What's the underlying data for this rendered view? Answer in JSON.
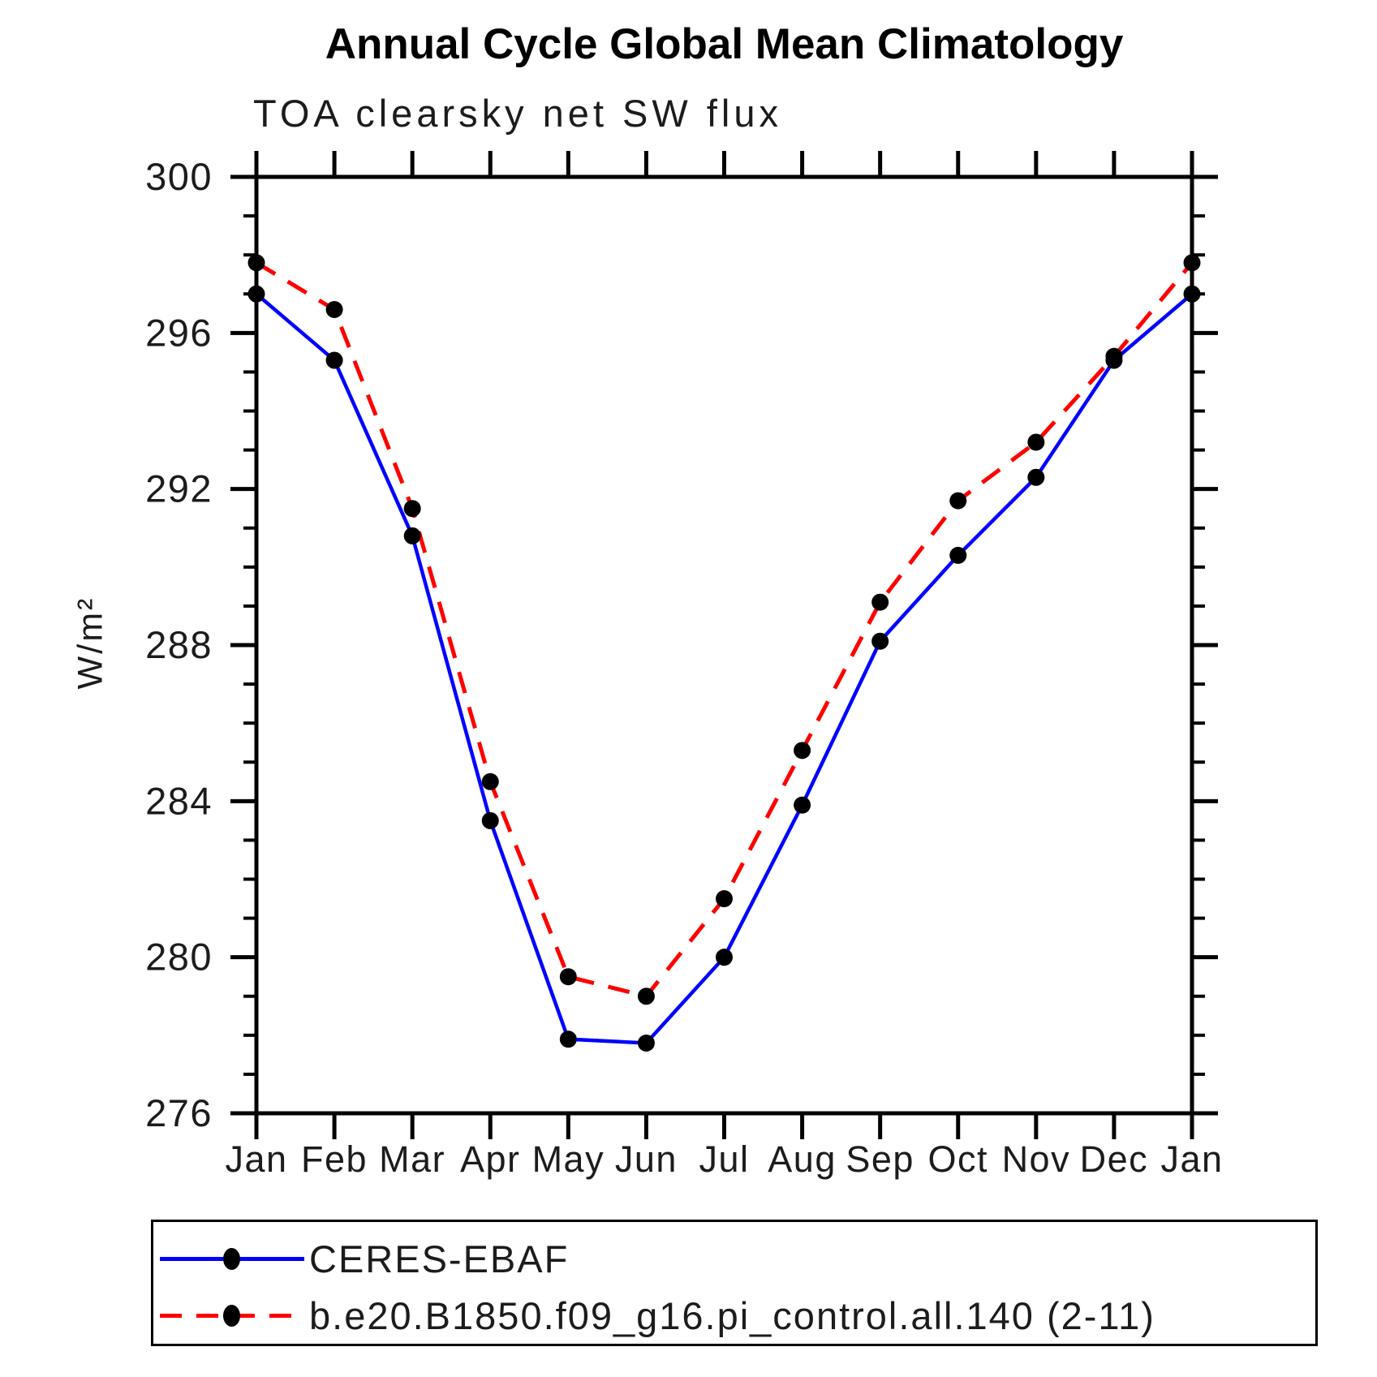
{
  "title": "Annual Cycle Global Mean Climatology",
  "subtitle": "TOA clearsky net SW flux",
  "ylabel": "W/m²",
  "colors": {
    "ceres_line": "#0000ff",
    "model_line": "#ff0000",
    "marker": "#000000",
    "axis": "#000000"
  },
  "chart_data": {
    "type": "line",
    "title": "Annual Cycle Global Mean Climatology",
    "subtitle": "TOA clearsky net SW flux",
    "ylabel": "W/m²",
    "categories": [
      "Jan",
      "Feb",
      "Mar",
      "Apr",
      "May",
      "Jun",
      "Jul",
      "Aug",
      "Sep",
      "Oct",
      "Nov",
      "Dec",
      "Jan"
    ],
    "series": [
      {
        "name": "CERES-EBAF",
        "color": "#0000ff",
        "line_style": "solid",
        "marker": "black-dot",
        "values": [
          297.0,
          295.3,
          290.8,
          283.5,
          277.9,
          277.8,
          280.0,
          283.9,
          288.1,
          290.3,
          292.3,
          295.3,
          297.0
        ]
      },
      {
        "name": "b.e20.B1850.f09_g16.pi_control.all.140 (2-11)",
        "color": "#ff0000",
        "line_style": "dashed",
        "marker": "black-dot",
        "values": [
          297.8,
          296.6,
          291.5,
          284.5,
          279.5,
          279.0,
          281.5,
          285.3,
          289.1,
          291.7,
          293.2,
          295.4,
          297.8
        ]
      }
    ],
    "ylim": [
      276,
      300
    ],
    "yticks_major": [
      276,
      280,
      284,
      288,
      292,
      296,
      300
    ],
    "ytick_minor_step": 1,
    "grid": "off",
    "legend_position": "bottom"
  }
}
